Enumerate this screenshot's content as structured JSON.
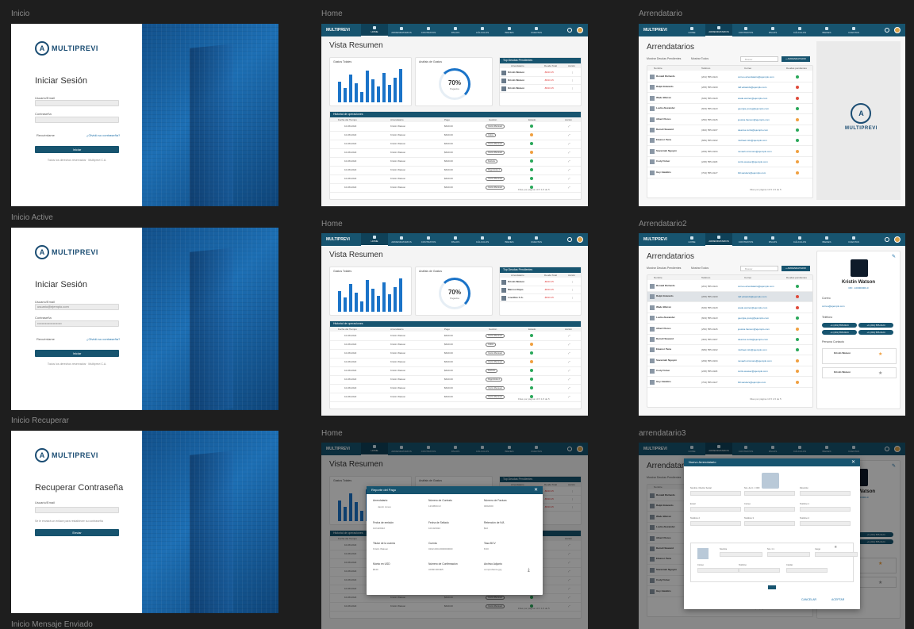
{
  "labels": {
    "inicio": "Inicio",
    "inicio_active": "Inicio Active",
    "inicio_recuperar": "Inicio Recuperar",
    "inicio_mensaje": "Inicio Mensaje Enviado",
    "home1": "Home",
    "home2": "Home",
    "home3": "Home",
    "arr1": "Arrendatario",
    "arr2": "Arrendatario2",
    "arr3": "arrendatario3"
  },
  "brand": {
    "name": "MULTIPREVI",
    "logo_letter": "A"
  },
  "login": {
    "title": "Iniciar Sesión",
    "user_label": "Usuario/Email",
    "pass_label": "Contraseña",
    "remember": "Recuérdame",
    "forgot": "¿Olvidó su contraseña?",
    "submit": "Iniciar",
    "user_value": "usuario@ejemplo.com",
    "pass_value": "••••••••••••••••••••••",
    "footer_note": "Todos los derechos reservados · Multiprevi C.A."
  },
  "recover": {
    "title": "Recuperar Contraseña",
    "user_label": "Usuario/Email",
    "hint": "Se le enviará un enlace para restablecer su contraseña",
    "submit": "Enviar"
  },
  "nav": [
    "HOME",
    "ARRENDATARIOS",
    "CONTRATOS",
    "PAGOS",
    "CÁLCULOS",
    "BIENES",
    "CUENTAS"
  ],
  "home": {
    "title": "Vista Resumen",
    "card_bar": "Gastos Totales",
    "card_donut": "Análisis de Gastos",
    "donut_value": "70%",
    "donut_caption": "Pagados",
    "panel_top": "Top Deudas Pendientes",
    "panel_cols": [
      "Arrendatario",
      "Deuda Total",
      "Acción"
    ],
    "top_rows": [
      {
        "name": "Kristin Watson",
        "amount": "-$643.15"
      },
      {
        "name": "Kristin Watson",
        "amount": "-$543.15"
      },
      {
        "name": "Kristin Watson",
        "amount": "-$543.15"
      }
    ],
    "top_rows_2": [
      {
        "name": "Kristin Watson",
        "amount": "-$643.15"
      },
      {
        "name": "Marcos Rojas",
        "amount": "-$543.15"
      },
      {
        "name": "LoveOne C.A.",
        "amount": "-$543.15"
      }
    ],
    "history": "Historial de operaciones",
    "history_cols": [
      "Fecha del Tiempo",
      "Arrendatario",
      "Pago",
      "Gestión",
      "Estado",
      "Acción"
    ],
    "history_rows": [
      {
        "date": "10-08-2022",
        "who": "Kristin Watson",
        "pay": "$640.00",
        "gest": "Cierre Mensual",
        "state": "ok"
      },
      {
        "date": "10-08-2022",
        "who": "Kristin Watson",
        "pay": "$640.00",
        "gest": "Cobro",
        "state": "warn"
      },
      {
        "date": "10-08-2022",
        "who": "Kristin Watson",
        "pay": "$640.00",
        "gest": "Cierre Mensual",
        "state": "ok"
      },
      {
        "date": "10-08-2022",
        "who": "Kristin Watson",
        "pay": "$640.00",
        "gest": "Cierre Mensual",
        "state": "warn"
      },
      {
        "date": "10-08-2022",
        "who": "Kristin Watson",
        "pay": "$640.00",
        "gest": "Factura",
        "state": "ok"
      },
      {
        "date": "10-08-2022",
        "who": "Kristin Watson",
        "pay": "$640.00",
        "gest": "Pago Extra 2",
        "state": "ok"
      },
      {
        "date": "10-08-2022",
        "who": "Kristin Watson",
        "pay": "$640.00",
        "gest": "Cierre Mensual",
        "state": "ok"
      },
      {
        "date": "10-08-2022",
        "who": "Kristin Watson",
        "pay": "$640.00",
        "gest": "Cierre Mensual",
        "state": "ok"
      }
    ],
    "pagination": "Filas por página  10  ▾     1-5 de 5"
  },
  "chart_data": {
    "type": "bar",
    "categories": [
      "1",
      "2",
      "3",
      "4",
      "5",
      "6",
      "7",
      "8",
      "9",
      "10",
      "11",
      "12"
    ],
    "values": [
      60,
      40,
      80,
      55,
      30,
      90,
      65,
      45,
      85,
      50,
      70,
      95
    ],
    "ylim": [
      0,
      100
    ]
  },
  "arr": {
    "title": "Arrendatarios",
    "filter_a": "Mostrar Deudas Pendientes",
    "filter_b": "Mostrar Todos",
    "search_placeholder": "Buscar",
    "add_button": "+ ARRENDATARIO",
    "cols": [
      "Nombre",
      "Teléfono",
      "Correo",
      "Deudas pendientes"
    ],
    "rows": [
      {
        "name": "Ronald Richards",
        "phone": "(201) 555-0124",
        "mail": "correo.arrendatario@ejemplo.com",
        "c": "#2aa85a"
      },
      {
        "name": "Ralph Edwards",
        "phone": "(205) 555-0100",
        "mail": "ralf.edwards@ejemplo.com",
        "c": "#e04b3b"
      },
      {
        "name": "Wade Warren",
        "phone": "(629) 555-0129",
        "mail": "wade.warren@ejemplo.com",
        "c": "#e04b3b"
      },
      {
        "name": "Leslie Alexander",
        "phone": "(603) 555-0123",
        "mail": "georgia.young@ejemplo.com",
        "c": "#2aa85a"
      },
      {
        "name": "Albert Flores",
        "phone": "(252) 555-0126",
        "mail": "jessica.hanson@ejemplo.com",
        "c": "#f0a040"
      },
      {
        "name": "Darrell Steward",
        "phone": "(302) 555-0107",
        "mail": "deanna.curtis@ejemplo.com",
        "c": "#2aa85a"
      },
      {
        "name": "Eleanor Pena",
        "phone": "(684) 555-0102",
        "mail": "michael.mitc@ejemplo.com",
        "c": "#2aa85a"
      },
      {
        "name": "Savannah Nguyen",
        "phone": "(209) 555-0104",
        "mail": "nevaeh.simmons@ejemplo.com",
        "c": "#f0a040"
      },
      {
        "name": "Cody Fisher",
        "phone": "(225) 555-0118",
        "mail": "curtis.weaver@ejemplo.com",
        "c": "#f0a040"
      },
      {
        "name": "Guy Hawkins",
        "phone": "(704) 555-0127",
        "mail": "bill.sanders@ejemplo.com",
        "c": "#f0a040"
      }
    ],
    "detail_name": "Kristin Watson",
    "detail_sub": "RIF: J-00000000-0",
    "detail_sections": [
      "Correo",
      "Teléfono",
      "Persona Contacto"
    ],
    "detail_email": "correo@ejemplo.com",
    "phones": [
      "+1 (201) 555-0124",
      "+1 (201) 555-0124",
      "+1 (201) 555-0124",
      "+1 (201) 555-0124"
    ],
    "contact_name": "Kristin Watson",
    "contact_name2": "Kristin Watson"
  },
  "payment_modal": {
    "title": "Reporte del Pago",
    "tenant_label": "Arrendatario:",
    "tenant_name": "Jacob Jones",
    "fields": [
      {
        "l": "Número de Contrato",
        "v": "123456C13"
      },
      {
        "l": "Número de Factura",
        "v": "0002200"
      },
      {
        "l": "Fecha de emisión",
        "v": "10/10/2022"
      },
      {
        "l": "Fecha de Sellado",
        "v": "10/10/2022"
      },
      {
        "l": "Retención de IVA",
        "v": "$32"
      },
      {
        "l": "Titular de la cuenta",
        "v": "Kristin Watson"
      },
      {
        "l": "Cuenta",
        "v": "0102-000-0000000000"
      },
      {
        "l": "Tasa BCV",
        "v": "8.00"
      },
      {
        "l": "Monto en USD",
        "v": "$640"
      },
      {
        "l": "Número de Confirmación",
        "v": "A1B2C3D4E5"
      },
      {
        "l": "Archivo Adjunto",
        "v": "comprobante.jpg"
      }
    ]
  },
  "new_tenant_modal": {
    "title": "Nuevo Arrendatario",
    "fields": [
      "Nombre / Razón Social",
      "Nro. de C.I. / RIF",
      "Dirección",
      "Email",
      "Correo",
      "Teléfono 1",
      "Teléfono 2",
      "Teléfono 3",
      "Teléfono 4"
    ],
    "contact_fields": [
      "Nombre",
      "Nro. C.I.",
      "Cargo",
      "Correo",
      "Teléfono",
      "Celular"
    ],
    "cancel": "CANCELAR",
    "accept": "ACEPTAR"
  }
}
